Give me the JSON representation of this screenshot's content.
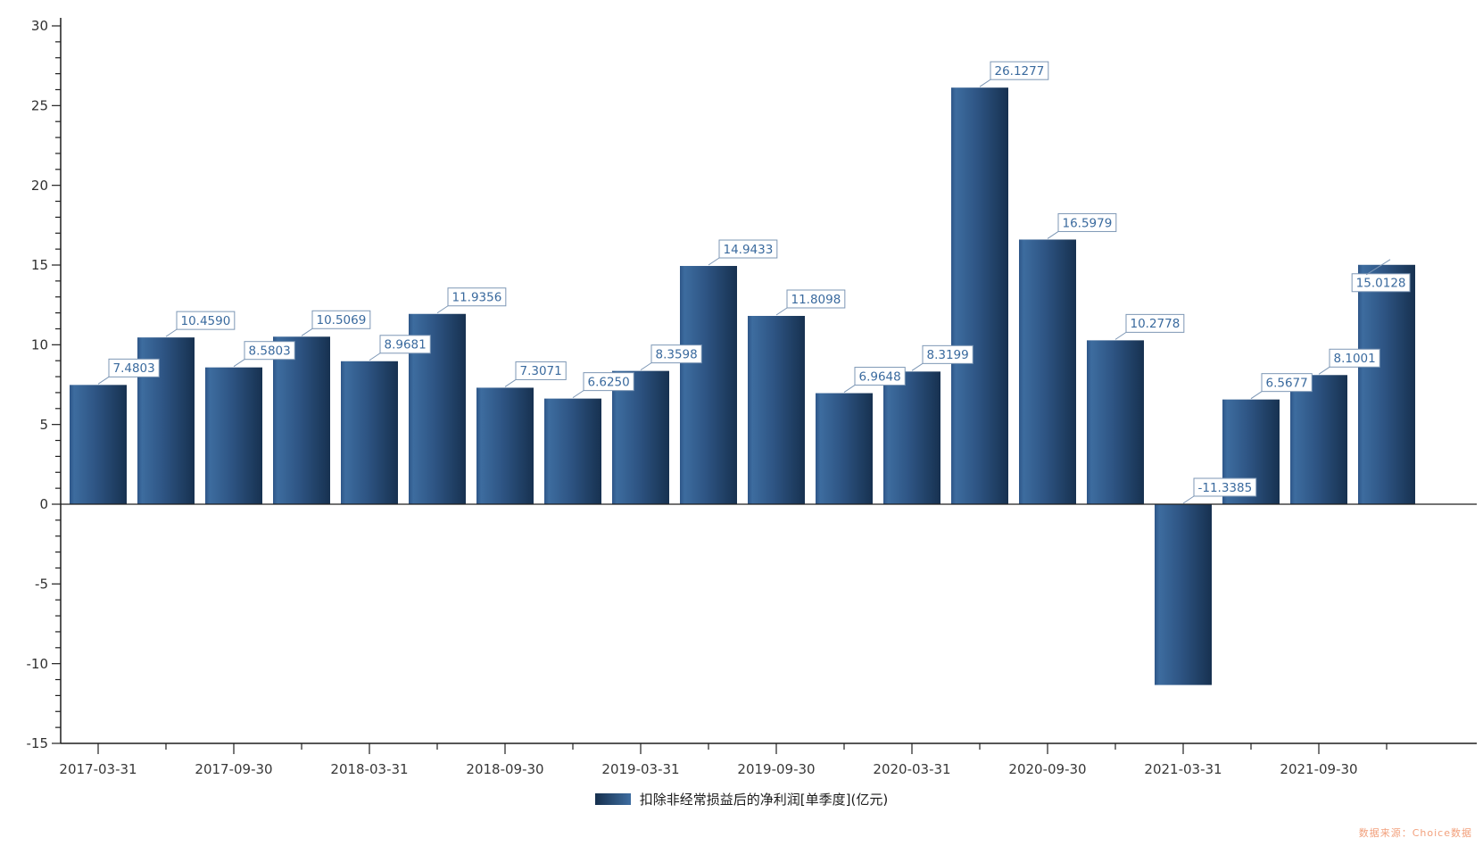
{
  "chart_data": {
    "type": "bar",
    "title": "",
    "legend": "扣除非经常损益后的净利润[单季度](亿元)",
    "legend_position": "bottom-center",
    "source_note": "数据来源：Choice数据",
    "x_tick_labels": [
      "2017-03-31",
      "2017-09-30",
      "2018-03-31",
      "2018-09-30",
      "2019-03-31",
      "2019-09-30",
      "2020-03-31",
      "2020-09-30",
      "2021-03-31",
      "2021-09-30"
    ],
    "x_label_every": 2,
    "values": [
      7.4803,
      10.459,
      8.5803,
      10.5069,
      8.9681,
      11.9356,
      7.3071,
      6.625,
      8.3598,
      14.9433,
      11.8098,
      6.9648,
      8.3199,
      26.1277,
      16.5979,
      10.2778,
      -11.3385,
      6.5677,
      8.1001,
      15.0128
    ],
    "value_labels": [
      "7.4803",
      "10.4590",
      "8.5803",
      "10.5069",
      "8.9681",
      "11.9356",
      "7.3071",
      "6.6250",
      "8.3598",
      "14.9433",
      "11.8098",
      "6.9648",
      "8.3199",
      "26.1277",
      "16.5979",
      "10.2778",
      "-11.3385",
      "6.5677",
      "8.1001",
      "15.0128"
    ],
    "y_ticks": [
      30,
      25,
      20,
      15,
      10,
      5,
      0,
      -5,
      -10,
      -15
    ],
    "y_minor_step": 1,
    "ylim": [
      -15,
      30
    ],
    "grid": false,
    "colors": {
      "bar_gradient": [
        "#2e5688",
        "#3d6c9f",
        "#2e5584",
        "#173150"
      ],
      "axis": "#1f1f1f",
      "value_label_text": "#3a6a9e",
      "value_label_border": "#7d97b5",
      "source_note": "#f2a07c"
    }
  }
}
